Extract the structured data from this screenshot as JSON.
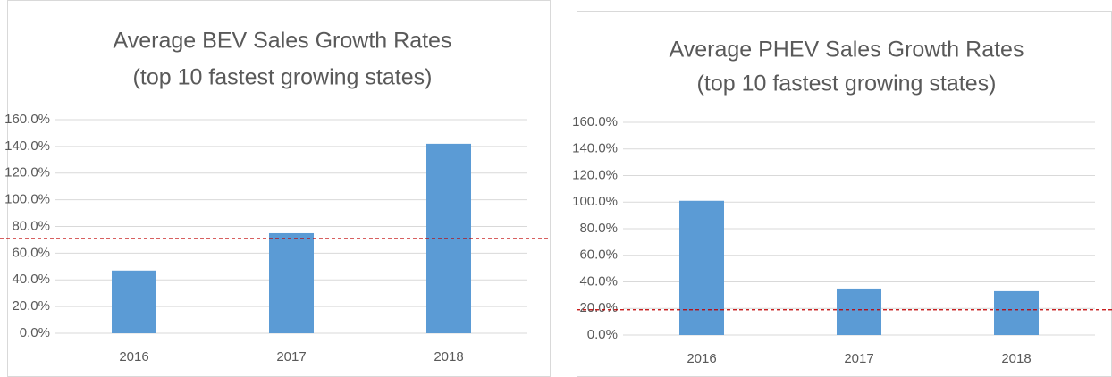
{
  "chart_data": [
    {
      "type": "bar",
      "title": "Average BEV Sales Growth Rates",
      "subtitle": "(top 10 fastest growing states)",
      "categories": [
        "2016",
        "2017",
        "2018"
      ],
      "values": [
        47,
        75,
        142
      ],
      "color": "#5b9bd5",
      "ylim": [
        0,
        160
      ],
      "yticks": [
        {
          "value": 0,
          "label": "0.0%"
        },
        {
          "value": 20,
          "label": "20.0%"
        },
        {
          "value": 40,
          "label": "40.0%"
        },
        {
          "value": 60,
          "label": "60.0%"
        },
        {
          "value": 80,
          "label": "80.0%"
        },
        {
          "value": 100,
          "label": "100.0%"
        },
        {
          "value": 120,
          "label": "120.0%"
        },
        {
          "value": 140,
          "label": "140.0%"
        },
        {
          "value": 160,
          "label": "160.0%"
        }
      ],
      "grid": true,
      "reference_line": 71,
      "reference_color": "#c00000"
    },
    {
      "type": "bar",
      "title": "Average PHEV Sales Growth Rates",
      "subtitle": "(top 10 fastest growing states)",
      "categories": [
        "2016",
        "2017",
        "2018"
      ],
      "values": [
        101,
        35,
        33
      ],
      "color": "#5b9bd5",
      "ylim": [
        0,
        160
      ],
      "yticks": [
        {
          "value": 0,
          "label": "0.0%"
        },
        {
          "value": 20,
          "label": "20.0%"
        },
        {
          "value": 40,
          "label": "40.0%"
        },
        {
          "value": 60,
          "label": "60.0%"
        },
        {
          "value": 80,
          "label": "80.0%"
        },
        {
          "value": 100,
          "label": "100.0%"
        },
        {
          "value": 120,
          "label": "120.0%"
        },
        {
          "value": 140,
          "label": "140.0%"
        },
        {
          "value": 160,
          "label": "160.0%"
        }
      ],
      "grid": true,
      "reference_line": 19,
      "reference_color": "#c00000"
    }
  ]
}
